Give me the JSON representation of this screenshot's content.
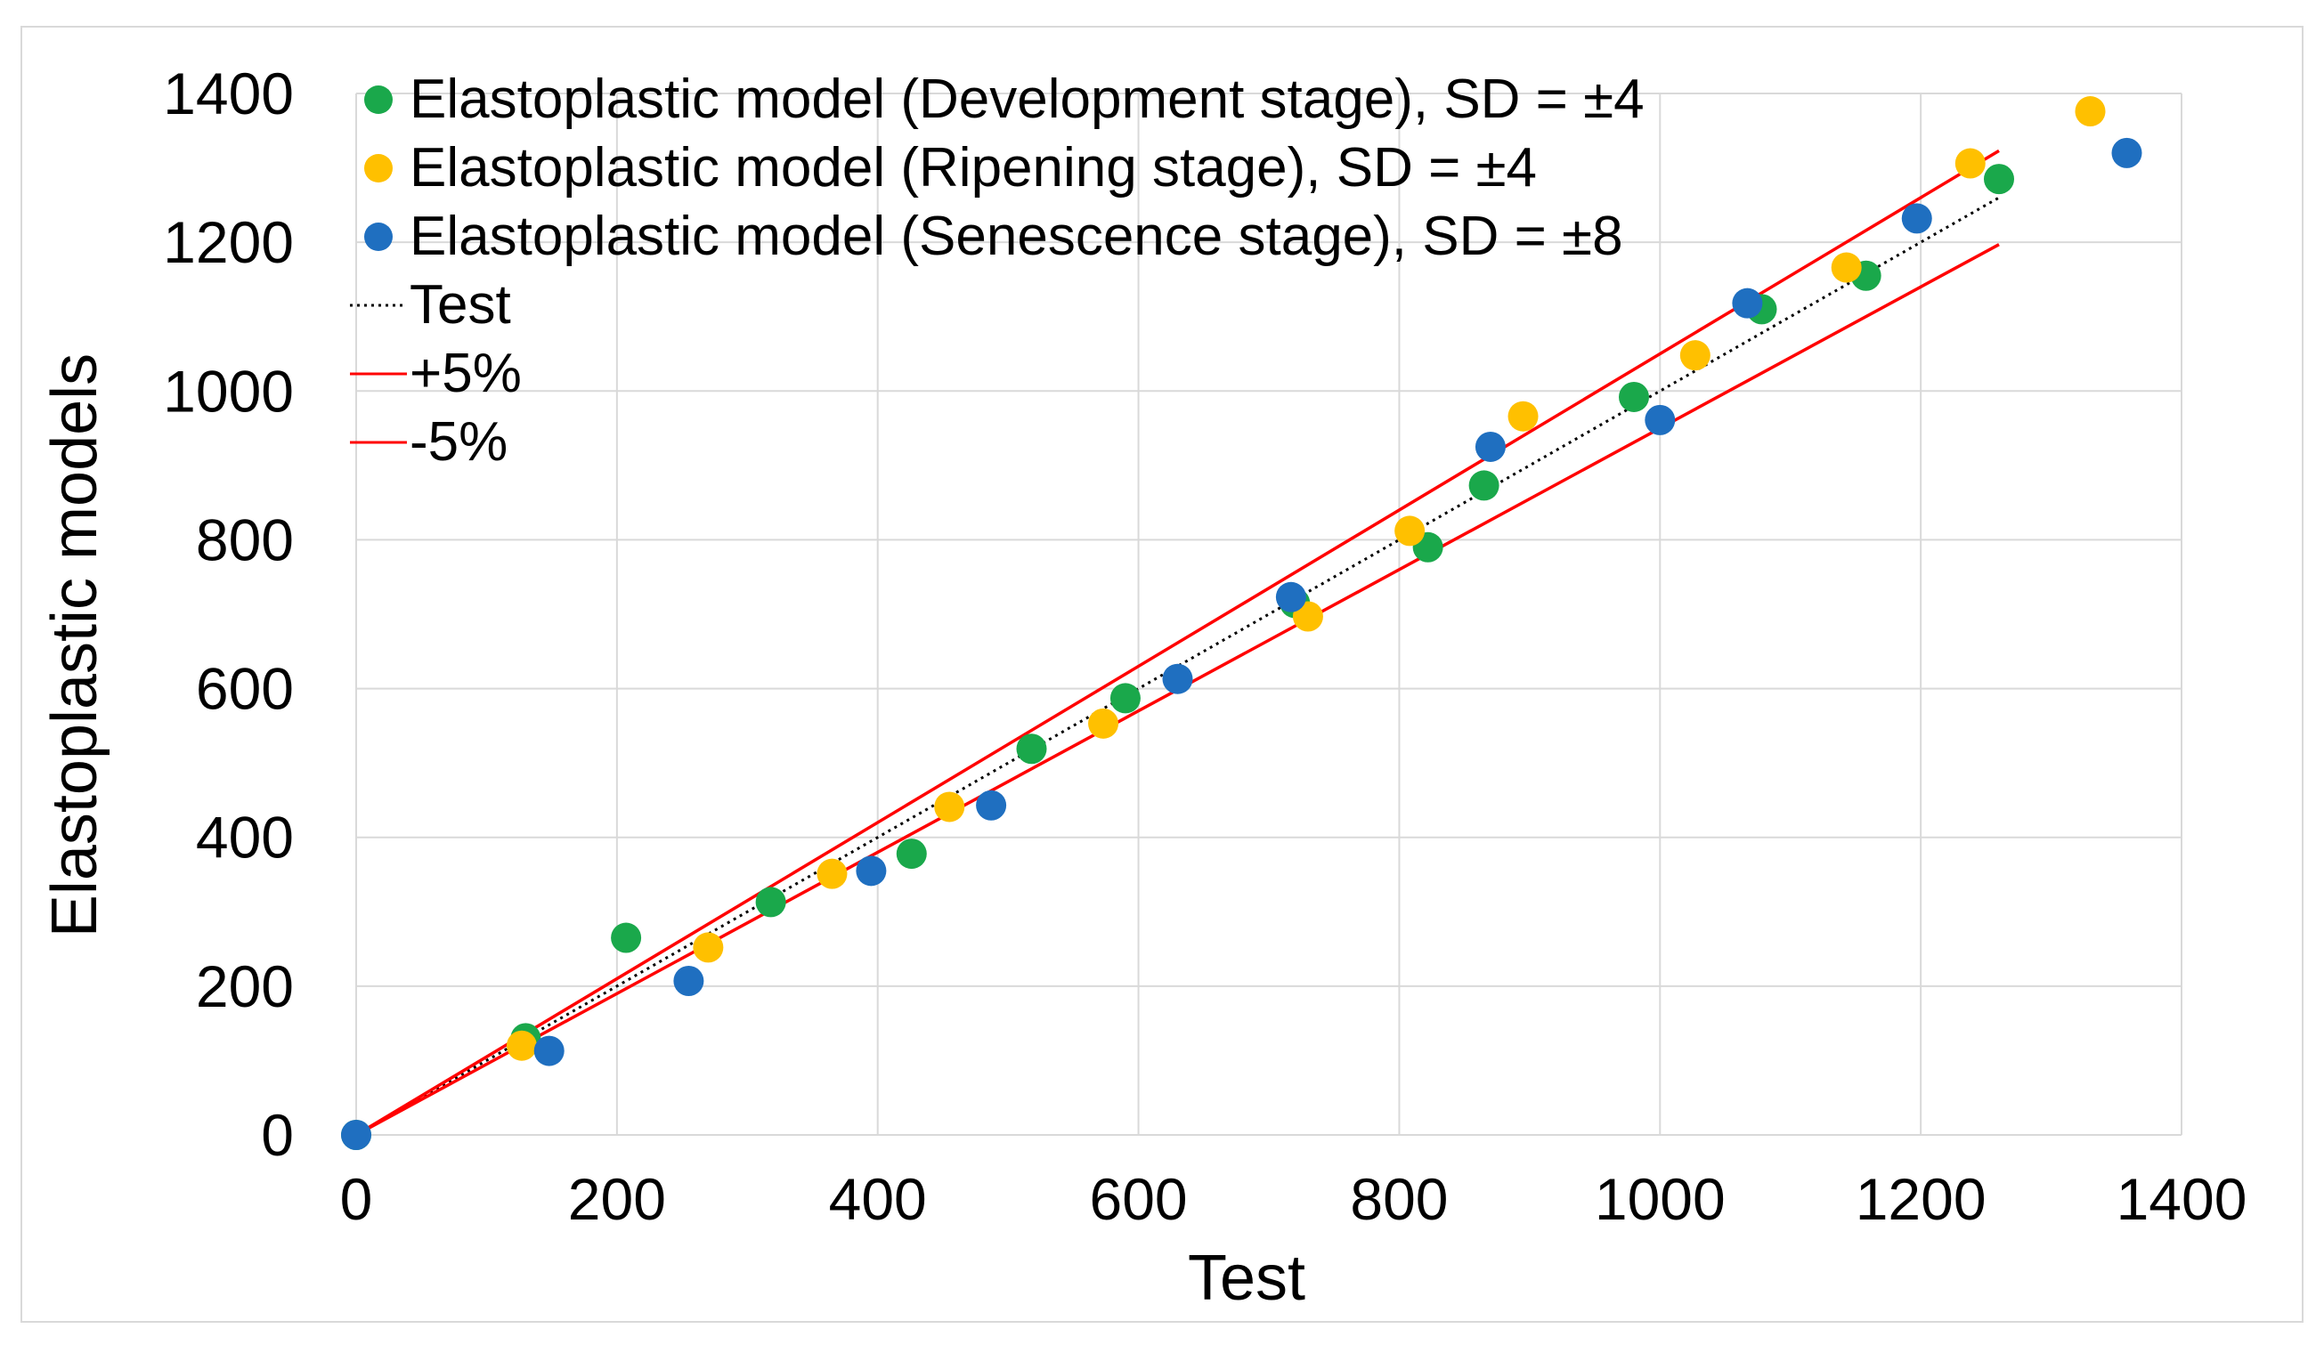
{
  "chart_data": {
    "type": "scatter",
    "title": "",
    "xlabel": "Test",
    "ylabel": "Elastoplastic models",
    "xlim": [
      0,
      1400
    ],
    "ylim": [
      0,
      1400
    ],
    "xticks": [
      0,
      200,
      400,
      600,
      800,
      1000,
      1200,
      1400
    ],
    "yticks": [
      0,
      200,
      400,
      600,
      800,
      1000,
      1200,
      1400
    ],
    "grid": true,
    "legend_placement": "top-left",
    "series": [
      {
        "name": "Elastoplastic model (Development stage), SD = ±4",
        "kind": "scatter",
        "color": "#1aa84b",
        "points": [
          [
            0,
            0
          ],
          [
            130,
            130
          ],
          [
            207,
            265
          ],
          [
            318,
            313
          ],
          [
            426,
            378
          ],
          [
            518,
            519
          ],
          [
            590,
            587
          ],
          [
            720,
            715
          ],
          [
            822,
            790
          ],
          [
            865,
            873
          ],
          [
            980,
            992
          ],
          [
            1078,
            1110
          ],
          [
            1158,
            1155
          ],
          [
            1260,
            1285
          ]
        ]
      },
      {
        "name": "Elastoplastic model (Ripening stage), SD = ±4",
        "kind": "scatter",
        "color": "#ffc000",
        "points": [
          [
            127,
            120
          ],
          [
            270,
            252
          ],
          [
            365,
            351
          ],
          [
            455,
            441
          ],
          [
            573,
            553
          ],
          [
            730,
            697
          ],
          [
            808,
            812
          ],
          [
            895,
            966
          ],
          [
            1027,
            1048
          ],
          [
            1143,
            1166
          ],
          [
            1238,
            1306
          ],
          [
            1330,
            1376
          ]
        ]
      },
      {
        "name": "Elastoplastic model (Senescence stage), SD = ±8",
        "kind": "scatter",
        "color": "#1f6fc0",
        "points": [
          [
            0,
            0
          ],
          [
            148,
            113
          ],
          [
            255,
            207
          ],
          [
            395,
            355
          ],
          [
            487,
            443
          ],
          [
            630,
            613
          ],
          [
            717,
            723
          ],
          [
            870,
            925
          ],
          [
            1000,
            961
          ],
          [
            1067,
            1118
          ],
          [
            1197,
            1232
          ],
          [
            1358,
            1320
          ]
        ]
      },
      {
        "name": "Test",
        "kind": "line",
        "color": "#000000",
        "dash": "dotted",
        "points": [
          [
            0,
            0
          ],
          [
            1260,
            1260
          ]
        ]
      },
      {
        "name": "+5%",
        "kind": "line",
        "color": "#ff0000",
        "points": [
          [
            0,
            0
          ],
          [
            1260,
            1323
          ]
        ]
      },
      {
        "name": "-5%",
        "kind": "line",
        "color": "#ff0000",
        "points": [
          [
            0,
            0
          ],
          [
            1260,
            1197
          ]
        ]
      }
    ]
  }
}
